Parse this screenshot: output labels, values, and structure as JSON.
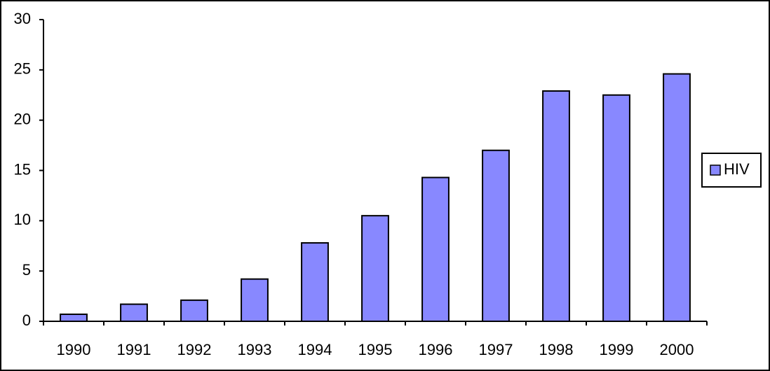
{
  "chart_data": {
    "type": "bar",
    "categories": [
      "1990",
      "1991",
      "1992",
      "1993",
      "1994",
      "1995",
      "1996",
      "1997",
      "1998",
      "1999",
      "2000"
    ],
    "series": [
      {
        "name": "HIV",
        "color": "#8888ff",
        "values": [
          0.7,
          1.7,
          2.1,
          4.2,
          7.8,
          10.5,
          14.3,
          17.0,
          22.9,
          22.5,
          24.6
        ]
      }
    ],
    "ylim": [
      0,
      30
    ],
    "yticks": [
      0,
      5,
      10,
      15,
      20,
      25,
      30
    ],
    "grid": false,
    "legend": "right"
  }
}
